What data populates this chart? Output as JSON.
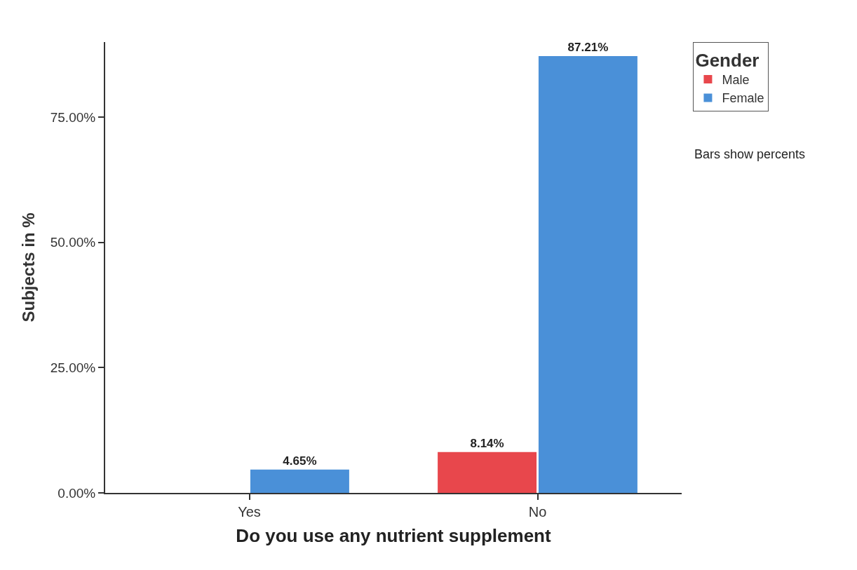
{
  "chart_data": {
    "type": "bar",
    "xlabel": "Do you use any nutrient supplement",
    "ylabel": "Subjects in %",
    "legend_title": "Gender",
    "categories": [
      "Yes",
      "No"
    ],
    "series": [
      {
        "name": "Male",
        "color": "#e8474c",
        "values": [
          null,
          8.14
        ],
        "value_labels": [
          null,
          "8.14%"
        ]
      },
      {
        "name": "Female",
        "color": "#4a90d8",
        "values": [
          4.65,
          87.21
        ],
        "value_labels": [
          "4.65%",
          "87.21%"
        ]
      }
    ],
    "ylim": [
      0,
      90
    ],
    "yticks": [
      {
        "value": 0,
        "label": "0.00%"
      },
      {
        "value": 25,
        "label": "25.00%"
      },
      {
        "value": 50,
        "label": "50.00%"
      },
      {
        "value": 75,
        "label": "75.00%"
      }
    ],
    "legend": "top right",
    "annotations": [
      "Bars show percents"
    ]
  }
}
